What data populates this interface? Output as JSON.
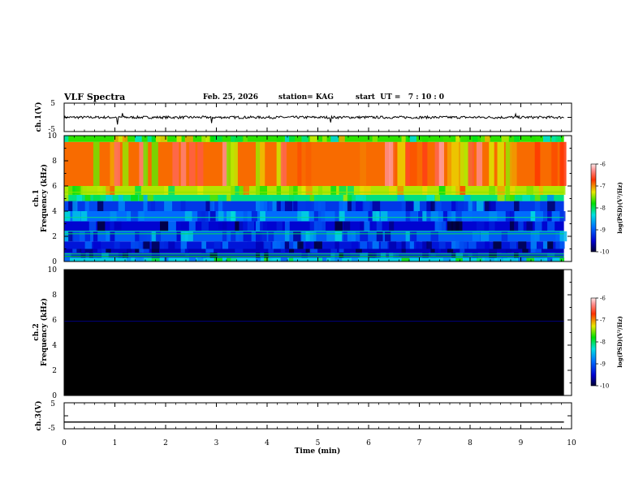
{
  "header": {
    "title": "VLF Spectra",
    "date": "Feb. 25, 2026",
    "station": "station= KAG",
    "start": "start  UT =   7 : 10 : 0"
  },
  "chart_data": [
    {
      "type": "line",
      "title": "ch.1(V)",
      "ylabel": "ch.1(V)",
      "ylim": [
        -5,
        5
      ],
      "yticks": [
        "5",
        "-5"
      ],
      "xlim": [
        0,
        10
      ],
      "series": [
        {
          "name": "ch.1 waveform",
          "level": 0,
          "noise": 0.45,
          "spikes": [
            {
              "x": 1.05,
              "y": -2.5
            },
            {
              "x": 1.15,
              "y": 1.5
            },
            {
              "x": 2.9,
              "y": -2.0
            },
            {
              "x": 5.25,
              "y": -1.8
            },
            {
              "x": 8.9,
              "y": 1.2
            }
          ]
        }
      ]
    },
    {
      "type": "heatmap",
      "title": "ch.1 Frequency (kHz)",
      "ylabel_line1": "ch.1",
      "ylabel_line2": "Frequency  (kHz)",
      "ylim": [
        0,
        10
      ],
      "yticks": [
        "0",
        "2",
        "4",
        "6",
        "8",
        "10"
      ],
      "xlim": [
        0,
        9.85
      ],
      "colorbar": {
        "label": "log(PSD)(V²/Hz)",
        "range": [
          -10,
          -6
        ],
        "ticks": [
          "-6",
          "-7",
          "-8",
          "-9",
          "-10"
        ]
      },
      "bands": [
        {
          "from": 0.0,
          "to": 0.3,
          "value": -8.4
        },
        {
          "from": 0.3,
          "to": 0.7,
          "value": -9.3
        },
        {
          "from": 0.7,
          "to": 1.0,
          "value": -9.6
        },
        {
          "from": 1.0,
          "to": 1.6,
          "value": -9.4
        },
        {
          "from": 1.6,
          "to": 2.4,
          "value": -9.0
        },
        {
          "from": 2.4,
          "to": 3.2,
          "value": -9.5
        },
        {
          "from": 3.2,
          "to": 4.0,
          "value": -8.9
        },
        {
          "from": 4.0,
          "to": 4.8,
          "value": -9.2
        },
        {
          "from": 4.8,
          "to": 5.3,
          "value": -8.1
        },
        {
          "from": 5.3,
          "to": 6.0,
          "value": -7.4
        },
        {
          "from": 6.0,
          "to": 9.5,
          "value": -6.9
        },
        {
          "from": 9.5,
          "to": 10.0,
          "value": -7.7
        }
      ],
      "lines": [
        {
          "f": 0.4,
          "value": -7.8
        },
        {
          "f": 0.6,
          "value": -8.0
        },
        {
          "f": 2.2,
          "value": -8.0
        },
        {
          "f": 2.4,
          "value": -8.2
        },
        {
          "f": 3.5,
          "value": -8.1
        },
        {
          "f": 5.5,
          "value": -7.5
        }
      ]
    },
    {
      "type": "heatmap",
      "title": "ch.2 Frequency (kHz)",
      "ylabel_line1": "ch.2",
      "ylabel_line2": "Frequency  (kHz)",
      "ylim": [
        0,
        10
      ],
      "yticks": [
        "0",
        "2",
        "4",
        "6",
        "8",
        "10"
      ],
      "xlim": [
        0,
        9.85
      ],
      "colorbar": {
        "label": "log(PSD)(V²/Hz)",
        "range": [
          -10,
          -6
        ],
        "ticks": [
          "-6",
          "-7",
          "-8",
          "-9",
          "-10"
        ]
      },
      "background": "below range",
      "lines": [
        {
          "f": 5.9,
          "value": -9.8
        }
      ]
    },
    {
      "type": "line",
      "title": "ch.3(V)",
      "ylabel": "ch.3(V)",
      "ylim": [
        -5,
        5
      ],
      "yticks": [
        "5",
        "-5"
      ],
      "xlim": [
        0,
        10
      ],
      "xlabel": "Time  (min)",
      "xticks": [
        "0",
        "1",
        "2",
        "3",
        "4",
        "5",
        "6",
        "7",
        "8",
        "9",
        "10"
      ],
      "series": [
        {
          "name": "ch.3 waveform",
          "level": -2.4,
          "noise": 0
        }
      ]
    }
  ]
}
